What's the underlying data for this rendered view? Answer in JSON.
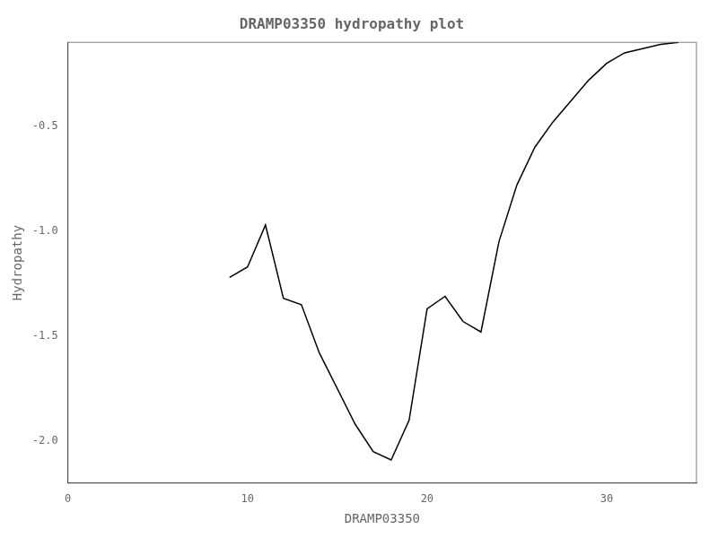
{
  "chart_data": {
    "type": "line",
    "title": "DRAMP03350 hydropathy plot",
    "xlabel": "DRAMP03350",
    "ylabel": "Hydropathy",
    "x": [
      9,
      10,
      11,
      12,
      13,
      14,
      15,
      16,
      17,
      18,
      19,
      20,
      21,
      22,
      23,
      24,
      25,
      26,
      27,
      28,
      29,
      30,
      31,
      32,
      33,
      34
    ],
    "values": [
      -1.22,
      -1.17,
      -0.97,
      -1.32,
      -1.35,
      -1.58,
      -1.75,
      -1.92,
      -2.05,
      -2.09,
      -1.9,
      -1.37,
      -1.31,
      -1.43,
      -1.48,
      -1.05,
      -0.78,
      -0.6,
      -0.48,
      -0.38,
      -0.28,
      -0.2,
      -0.15,
      -0.13,
      -0.11,
      -0.1
    ],
    "color": "#000000",
    "xlim": [
      0,
      35
    ],
    "xticks": [
      0,
      10,
      20,
      30
    ],
    "ylim": [
      -2.2,
      -0.1
    ],
    "yticks": [
      {
        "value": -2.0,
        "label": "-2.0"
      },
      -1.5,
      {
        "value": -1.0,
        "label": "-1.0"
      },
      -0.5
    ],
    "grid": false
  }
}
